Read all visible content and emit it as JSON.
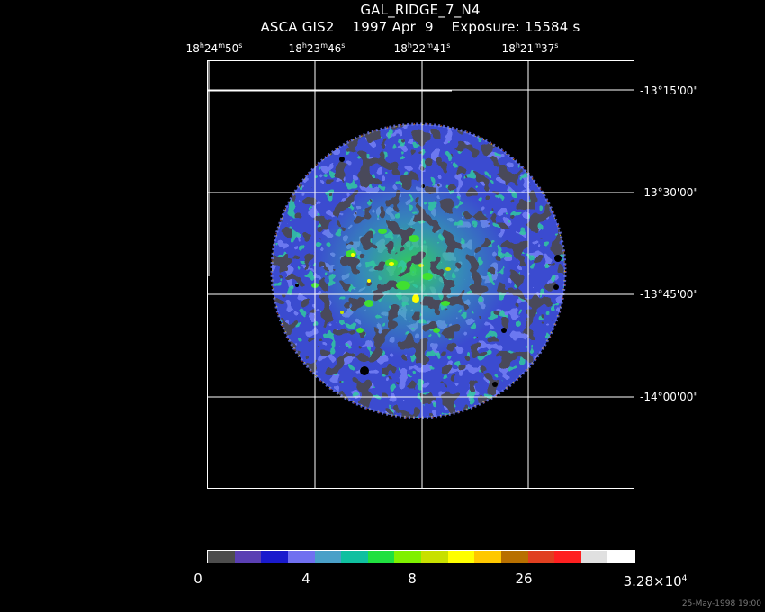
{
  "header": {
    "title": "GAL_RIDGE_7_N4",
    "subtitle": "ASCA GIS2    1997 Apr  9    Exposure: 15584 s"
  },
  "ra_axis": [
    {
      "h": "18",
      "m": "24",
      "s": "50"
    },
    {
      "h": "18",
      "m": "23",
      "s": "46"
    },
    {
      "h": "18",
      "m": "22",
      "s": "41"
    },
    {
      "h": "18",
      "m": "21",
      "s": "37"
    }
  ],
  "dec_axis": [
    "-13°15'00\"",
    "-13°30'00\"",
    "-13°45'00\"",
    "-14°00'00\""
  ],
  "colorbar": {
    "colors": [
      "#4d4d4d",
      "#5a3fb3",
      "#1a1acd",
      "#7070f0",
      "#4aa0c8",
      "#10c0a0",
      "#20e040",
      "#80f000",
      "#c8e000",
      "#ffff00",
      "#ffc800",
      "#b87000",
      "#e04020",
      "#ff2020",
      "#e0e0e0",
      "#ffffff"
    ],
    "labels": [
      {
        "text": "0"
      },
      {
        "text": "4"
      },
      {
        "text": "8"
      },
      {
        "text": "26"
      },
      {
        "text": "3.28×10",
        "exp": "4"
      }
    ]
  },
  "timestamp": "25-May-1998 19:00"
}
